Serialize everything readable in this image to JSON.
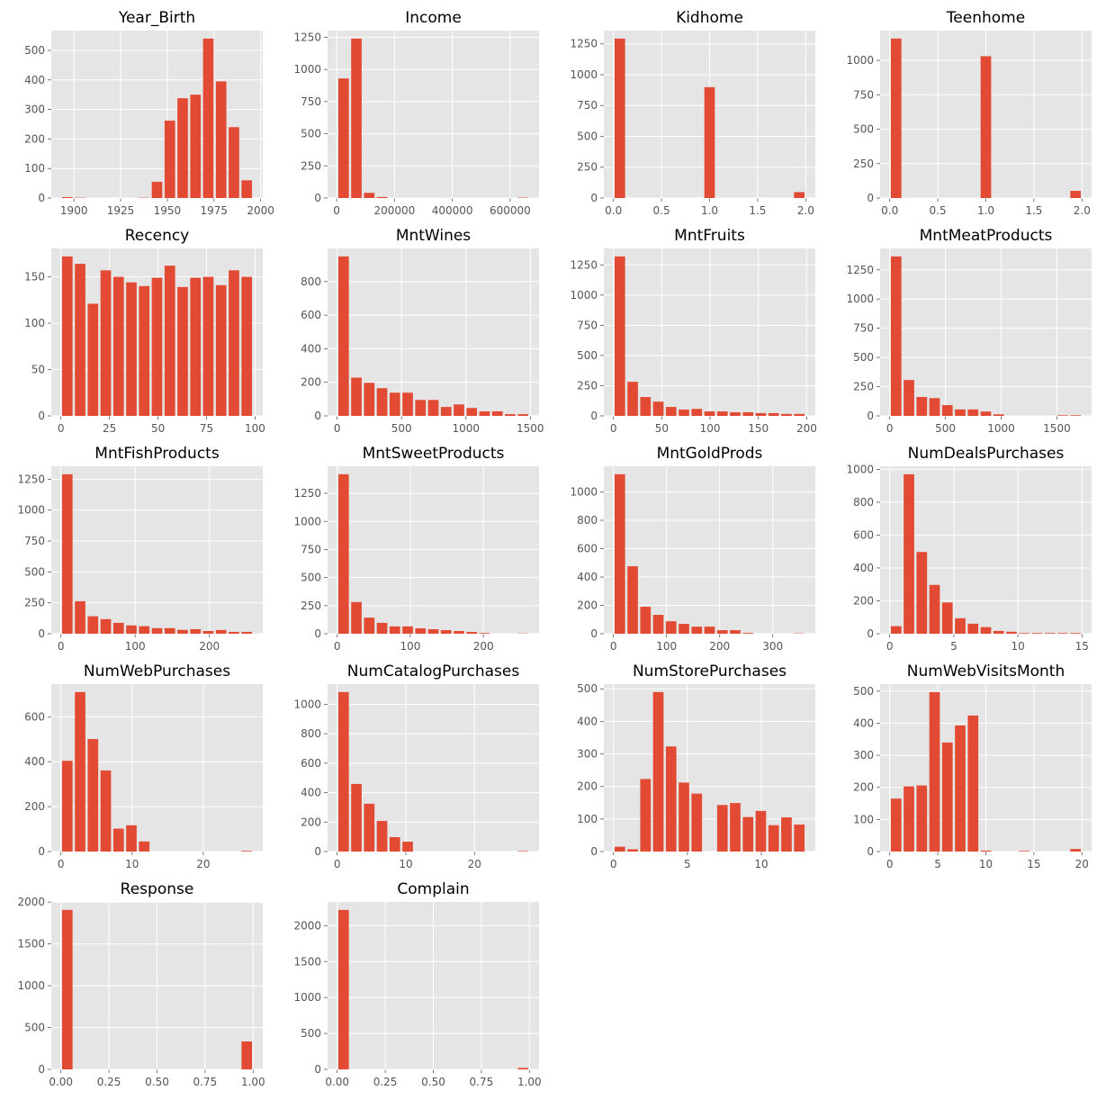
{
  "style": {
    "background": "#E5E5E5",
    "bar_color": "#E24A33",
    "grid_color": "#FFFFFF",
    "tick_color": "#555555",
    "grid": true
  },
  "chart_data": [
    {
      "type": "bar",
      "title": "Year_Birth",
      "bin_range": [
        1893,
        1996
      ],
      "counts": [
        3,
        1,
        0,
        0,
        0,
        0,
        1,
        55,
        262,
        338,
        350,
        540,
        395,
        240,
        60
      ],
      "xticks": [
        1900,
        1925,
        1950,
        1975,
        2000
      ],
      "xtick_labels": [
        "1900",
        "1925",
        "1950",
        "1975",
        "2000"
      ],
      "yticks": [
        0,
        100,
        200,
        300,
        400,
        500
      ],
      "ytick_labels": [
        "0",
        "100",
        "200",
        "300",
        "400",
        "500"
      ]
    },
    {
      "type": "bar",
      "title": "Income",
      "bin_range": [
        1730,
        666666
      ],
      "counts": [
        930,
        1240,
        40,
        8,
        0,
        0,
        0,
        0,
        0,
        0,
        0,
        0,
        0,
        0,
        3
      ],
      "xticks": [
        0,
        200000,
        400000,
        600000
      ],
      "xtick_labels": [
        "0",
        "200000",
        "400000",
        "600000"
      ],
      "yticks": [
        0,
        250,
        500,
        750,
        1000,
        1250
      ],
      "ytick_labels": [
        "0",
        "250",
        "500",
        "750",
        "1000",
        "1250"
      ]
    },
    {
      "type": "bar",
      "title": "Kidhome",
      "bin_range": [
        0,
        2
      ],
      "counts": [
        1293,
        0,
        0,
        0,
        0,
        0,
        0,
        899,
        0,
        0,
        0,
        0,
        0,
        0,
        48
      ],
      "xticks": [
        0,
        0.5,
        1,
        1.5,
        2
      ],
      "xtick_labels": [
        "0.0",
        "0.5",
        "1.0",
        "1.5",
        "2.0"
      ],
      "yticks": [
        0,
        250,
        500,
        750,
        1000,
        1250
      ],
      "ytick_labels": [
        "0",
        "250",
        "500",
        "750",
        "1000",
        "1250"
      ]
    },
    {
      "type": "bar",
      "title": "Teenhome",
      "bin_range": [
        0,
        2
      ],
      "counts": [
        1158,
        0,
        0,
        0,
        0,
        0,
        0,
        1030,
        0,
        0,
        0,
        0,
        0,
        0,
        52
      ],
      "xticks": [
        0,
        0.5,
        1,
        1.5,
        2
      ],
      "xtick_labels": [
        "0.0",
        "0.5",
        "1.0",
        "1.5",
        "2.0"
      ],
      "yticks": [
        0,
        250,
        500,
        750,
        1000
      ],
      "ytick_labels": [
        "0",
        "250",
        "500",
        "750",
        "1000"
      ]
    },
    {
      "type": "bar",
      "title": "Recency",
      "bin_range": [
        0,
        99
      ],
      "counts": [
        172,
        164,
        121,
        157,
        150,
        144,
        140,
        149,
        162,
        139,
        149,
        150,
        141,
        157,
        150
      ],
      "xticks": [
        0,
        25,
        50,
        75,
        100
      ],
      "xtick_labels": [
        "0",
        "25",
        "50",
        "75",
        "100"
      ],
      "yticks": [
        0,
        50,
        100,
        150
      ],
      "ytick_labels": [
        "0",
        "50",
        "100",
        "150"
      ]
    },
    {
      "type": "bar",
      "title": "MntWines",
      "bin_range": [
        0,
        1493
      ],
      "counts": [
        950,
        228,
        197,
        165,
        138,
        138,
        95,
        95,
        53,
        68,
        47,
        27,
        27,
        10,
        10
      ],
      "xticks": [
        0,
        500,
        1000,
        1500
      ],
      "xtick_labels": [
        "0",
        "500",
        "1000",
        "1500"
      ],
      "yticks": [
        0,
        200,
        400,
        600,
        800
      ],
      "ytick_labels": [
        "0",
        "200",
        "400",
        "600",
        "800"
      ]
    },
    {
      "type": "bar",
      "title": "MntFruits",
      "bin_range": [
        0,
        199
      ],
      "counts": [
        1320,
        282,
        156,
        118,
        74,
        52,
        58,
        37,
        37,
        30,
        30,
        23,
        23,
        16,
        16
      ],
      "xticks": [
        0,
        50,
        100,
        150,
        200
      ],
      "xtick_labels": [
        "0",
        "50",
        "100",
        "150",
        "200"
      ],
      "yticks": [
        0,
        250,
        500,
        750,
        1000,
        1250
      ],
      "ytick_labels": [
        "0",
        "250",
        "500",
        "750",
        "1000",
        "1250"
      ]
    },
    {
      "type": "bar",
      "title": "MntMeatProducts",
      "bin_range": [
        0,
        1725
      ],
      "counts": [
        1365,
        307,
        162,
        152,
        92,
        55,
        55,
        37,
        13,
        0,
        0,
        0,
        0,
        5,
        5
      ],
      "xticks": [
        0,
        500,
        1000,
        1500
      ],
      "xtick_labels": [
        "0",
        "500",
        "1000",
        "1500"
      ],
      "yticks": [
        0,
        250,
        500,
        750,
        1000,
        1250
      ],
      "ytick_labels": [
        "0",
        "250",
        "500",
        "750",
        "1000",
        "1250"
      ]
    },
    {
      "type": "bar",
      "title": "MntFishProducts",
      "bin_range": [
        0,
        259
      ],
      "counts": [
        1290,
        263,
        141,
        118,
        88,
        67,
        61,
        45,
        45,
        31,
        37,
        22,
        30,
        15,
        15
      ],
      "xticks": [
        0,
        100,
        200
      ],
      "xtick_labels": [
        "0",
        "100",
        "200"
      ],
      "yticks": [
        0,
        250,
        500,
        750,
        1000,
        1250
      ],
      "ytick_labels": [
        "0",
        "250",
        "500",
        "750",
        "1000",
        "1250"
      ]
    },
    {
      "type": "bar",
      "title": "MntSweetProducts",
      "bin_range": [
        0,
        263
      ],
      "counts": [
        1420,
        282,
        143,
        97,
        65,
        65,
        48,
        40,
        32,
        24,
        16,
        6,
        0,
        0,
        2
      ],
      "xticks": [
        0,
        100,
        200
      ],
      "xtick_labels": [
        "0",
        "100",
        "200"
      ],
      "yticks": [
        0,
        250,
        500,
        750,
        1000,
        1250
      ],
      "ytick_labels": [
        "0",
        "250",
        "500",
        "750",
        "1000",
        "1250"
      ]
    },
    {
      "type": "bar",
      "title": "MntGoldProds",
      "bin_range": [
        0,
        362
      ],
      "counts": [
        1125,
        476,
        190,
        133,
        88,
        69,
        50,
        50,
        25,
        25,
        5,
        0,
        0,
        0,
        2
      ],
      "xticks": [
        0,
        100,
        200,
        300
      ],
      "xtick_labels": [
        "0",
        "100",
        "200",
        "300"
      ],
      "yticks": [
        0,
        200,
        400,
        600,
        800,
        1000
      ],
      "ytick_labels": [
        "0",
        "200",
        "400",
        "600",
        "800",
        "1000"
      ]
    },
    {
      "type": "bar",
      "title": "NumDealsPurchases",
      "bin_range": [
        0,
        15
      ],
      "counts": [
        46,
        970,
        497,
        297,
        190,
        94,
        61,
        40,
        17,
        12,
        4,
        4,
        4,
        4,
        4
      ],
      "xticks": [
        0,
        5,
        10,
        15
      ],
      "xtick_labels": [
        "0",
        "5",
        "10",
        "15"
      ],
      "yticks": [
        0,
        200,
        400,
        600,
        800,
        1000
      ],
      "ytick_labels": [
        "0",
        "200",
        "400",
        "600",
        "800",
        "1000"
      ]
    },
    {
      "type": "bar",
      "title": "NumWebPurchases",
      "bin_range": [
        0,
        27
      ],
      "counts": [
        404,
        710,
        501,
        361,
        102,
        117,
        45,
        0,
        0,
        0,
        0,
        0,
        0,
        0,
        3
      ],
      "xticks": [
        0,
        10,
        20
      ],
      "xtick_labels": [
        "0",
        "10",
        "20"
      ],
      "yticks": [
        0,
        200,
        400,
        600
      ],
      "ytick_labels": [
        "0",
        "200",
        "400",
        "600"
      ]
    },
    {
      "type": "bar",
      "title": "NumCatalogPurchases",
      "bin_range": [
        0,
        28
      ],
      "counts": [
        1083,
        459,
        325,
        208,
        98,
        67,
        0,
        0,
        0,
        0,
        0,
        0,
        0,
        0,
        3
      ],
      "xticks": [
        0,
        10,
        20
      ],
      "xtick_labels": [
        "0",
        "10",
        "20"
      ],
      "yticks": [
        0,
        200,
        400,
        600,
        800,
        1000
      ],
      "ytick_labels": [
        "0",
        "200",
        "400",
        "600",
        "800",
        "1000"
      ]
    },
    {
      "type": "bar",
      "title": "NumStorePurchases",
      "bin_range": [
        0,
        13
      ],
      "counts": [
        15,
        7,
        223,
        490,
        323,
        212,
        178,
        0,
        143,
        149,
        106,
        125,
        81,
        105,
        83
      ],
      "xticks": [
        0,
        5,
        10
      ],
      "xtick_labels": [
        "0",
        "5",
        "10"
      ],
      "yticks": [
        0,
        100,
        200,
        300,
        400,
        500
      ],
      "ytick_labels": [
        "0",
        "100",
        "200",
        "300",
        "400",
        "500"
      ]
    },
    {
      "type": "bar",
      "title": "NumWebVisitsMonth",
      "bin_range": [
        0,
        20
      ],
      "counts": [
        165,
        203,
        206,
        497,
        340,
        393,
        424,
        3,
        0,
        0,
        2,
        0,
        0,
        0,
        8
      ],
      "xticks": [
        0,
        5,
        10,
        15,
        20
      ],
      "xtick_labels": [
        "0",
        "5",
        "10",
        "15",
        "20"
      ],
      "yticks": [
        0,
        100,
        200,
        300,
        400,
        500
      ],
      "ytick_labels": [
        "0",
        "100",
        "200",
        "300",
        "400",
        "500"
      ]
    },
    {
      "type": "bar",
      "title": "Response",
      "bin_range": [
        0,
        1
      ],
      "counts": [
        1906,
        0,
        0,
        0,
        0,
        0,
        0,
        0,
        0,
        0,
        0,
        0,
        0,
        0,
        334
      ],
      "xticks": [
        0,
        0.25,
        0.5,
        0.75,
        1
      ],
      "xtick_labels": [
        "0.00",
        "0.25",
        "0.50",
        "0.75",
        "1.00"
      ],
      "yticks": [
        0,
        500,
        1000,
        1500,
        2000
      ],
      "ytick_labels": [
        "0",
        "500",
        "1000",
        "1500",
        "2000"
      ]
    },
    {
      "type": "bar",
      "title": "Complain",
      "bin_range": [
        0,
        1
      ],
      "counts": [
        2219,
        0,
        0,
        0,
        0,
        0,
        0,
        0,
        0,
        0,
        0,
        0,
        0,
        0,
        21
      ],
      "xticks": [
        0,
        0.25,
        0.5,
        0.75,
        1
      ],
      "xtick_labels": [
        "0.00",
        "0.25",
        "0.50",
        "0.75",
        "1.00"
      ],
      "yticks": [
        0,
        500,
        1000,
        1500,
        2000
      ],
      "ytick_labels": [
        "0",
        "500",
        "1000",
        "1500",
        "2000"
      ]
    }
  ]
}
